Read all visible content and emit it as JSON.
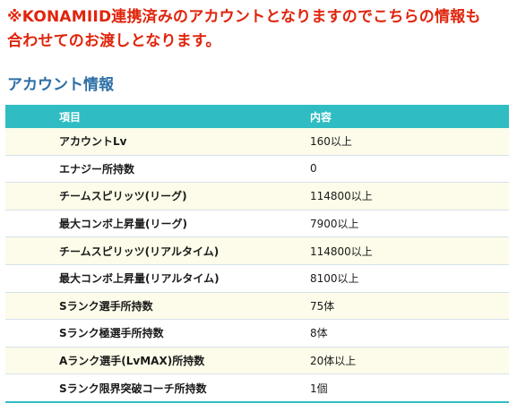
{
  "notice": {
    "line1": "※KONAMIID連携済みのアカウントとなりますのでこちらの情報も",
    "line2": "合わせてのお渡しとなります。"
  },
  "section_title": "アカウント情報",
  "table": {
    "headers": [
      "項目",
      "内容"
    ],
    "rows": [
      {
        "item": "アカウントLv",
        "value": "160以上"
      },
      {
        "item": "エナジー所持数",
        "value": "0"
      },
      {
        "item": "チームスピリッツ(リーグ)",
        "value": "114800以上"
      },
      {
        "item": "最大コンボ上昇量(リーグ)",
        "value": "7900以上"
      },
      {
        "item": "チームスピリッツ(リアルタイム)",
        "value": "114800以上"
      },
      {
        "item": "最大コンボ上昇量(リアルタイム)",
        "value": "8100以上"
      },
      {
        "item": "Sランク選手所持数",
        "value": "75体"
      },
      {
        "item": "Sランク極選手所持数",
        "value": "8体"
      },
      {
        "item": "Aランク選手(LvMAX)所持数",
        "value": "20体以上"
      },
      {
        "item": "Sランク限界突破コーチ所持数",
        "value": "1個"
      }
    ]
  },
  "colors": {
    "notice": "#e0240c",
    "title": "#2d6fa6",
    "header_bg": "#2fbcc3",
    "row_odd_bg": "#fdfbe9"
  }
}
